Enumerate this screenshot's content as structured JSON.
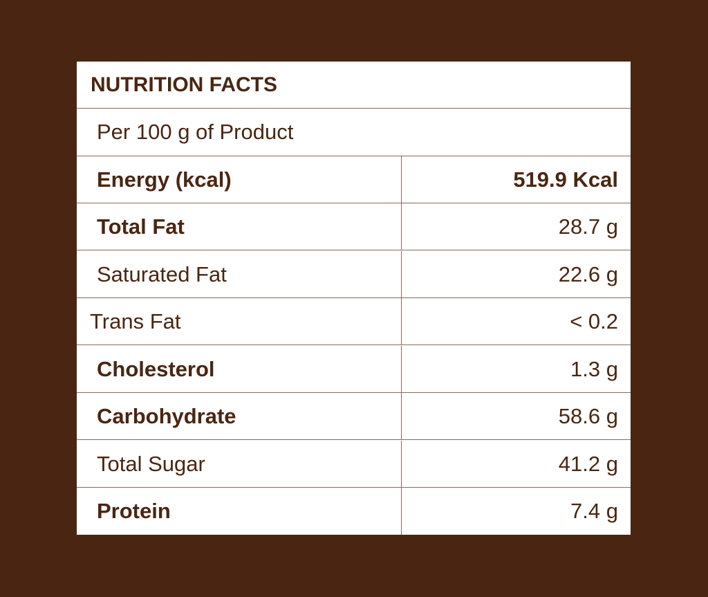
{
  "title": "NUTRITION FACTS",
  "subtitle": "Per 100 g of Product",
  "rows": [
    {
      "label": "Energy (kcal)",
      "value": "519.9 Kcal"
    },
    {
      "label": "Total Fat",
      "value": "28.7 g"
    },
    {
      "label": "Saturated Fat",
      "value": "22.6 g"
    },
    {
      "label": "Trans Fat",
      "value": "< 0.2"
    },
    {
      "label": "Cholesterol",
      "value": "1.3 g"
    },
    {
      "label": "Carbohydrate",
      "value": "58.6 g"
    },
    {
      "label": "Total Sugar",
      "value": "41.2 g"
    },
    {
      "label": "Protein",
      "value": "7.4 g"
    }
  ],
  "colors": {
    "background": "#4a2612",
    "text": "#4a2612",
    "panel": "#ffffff",
    "rule": "#8a6a5a"
  }
}
